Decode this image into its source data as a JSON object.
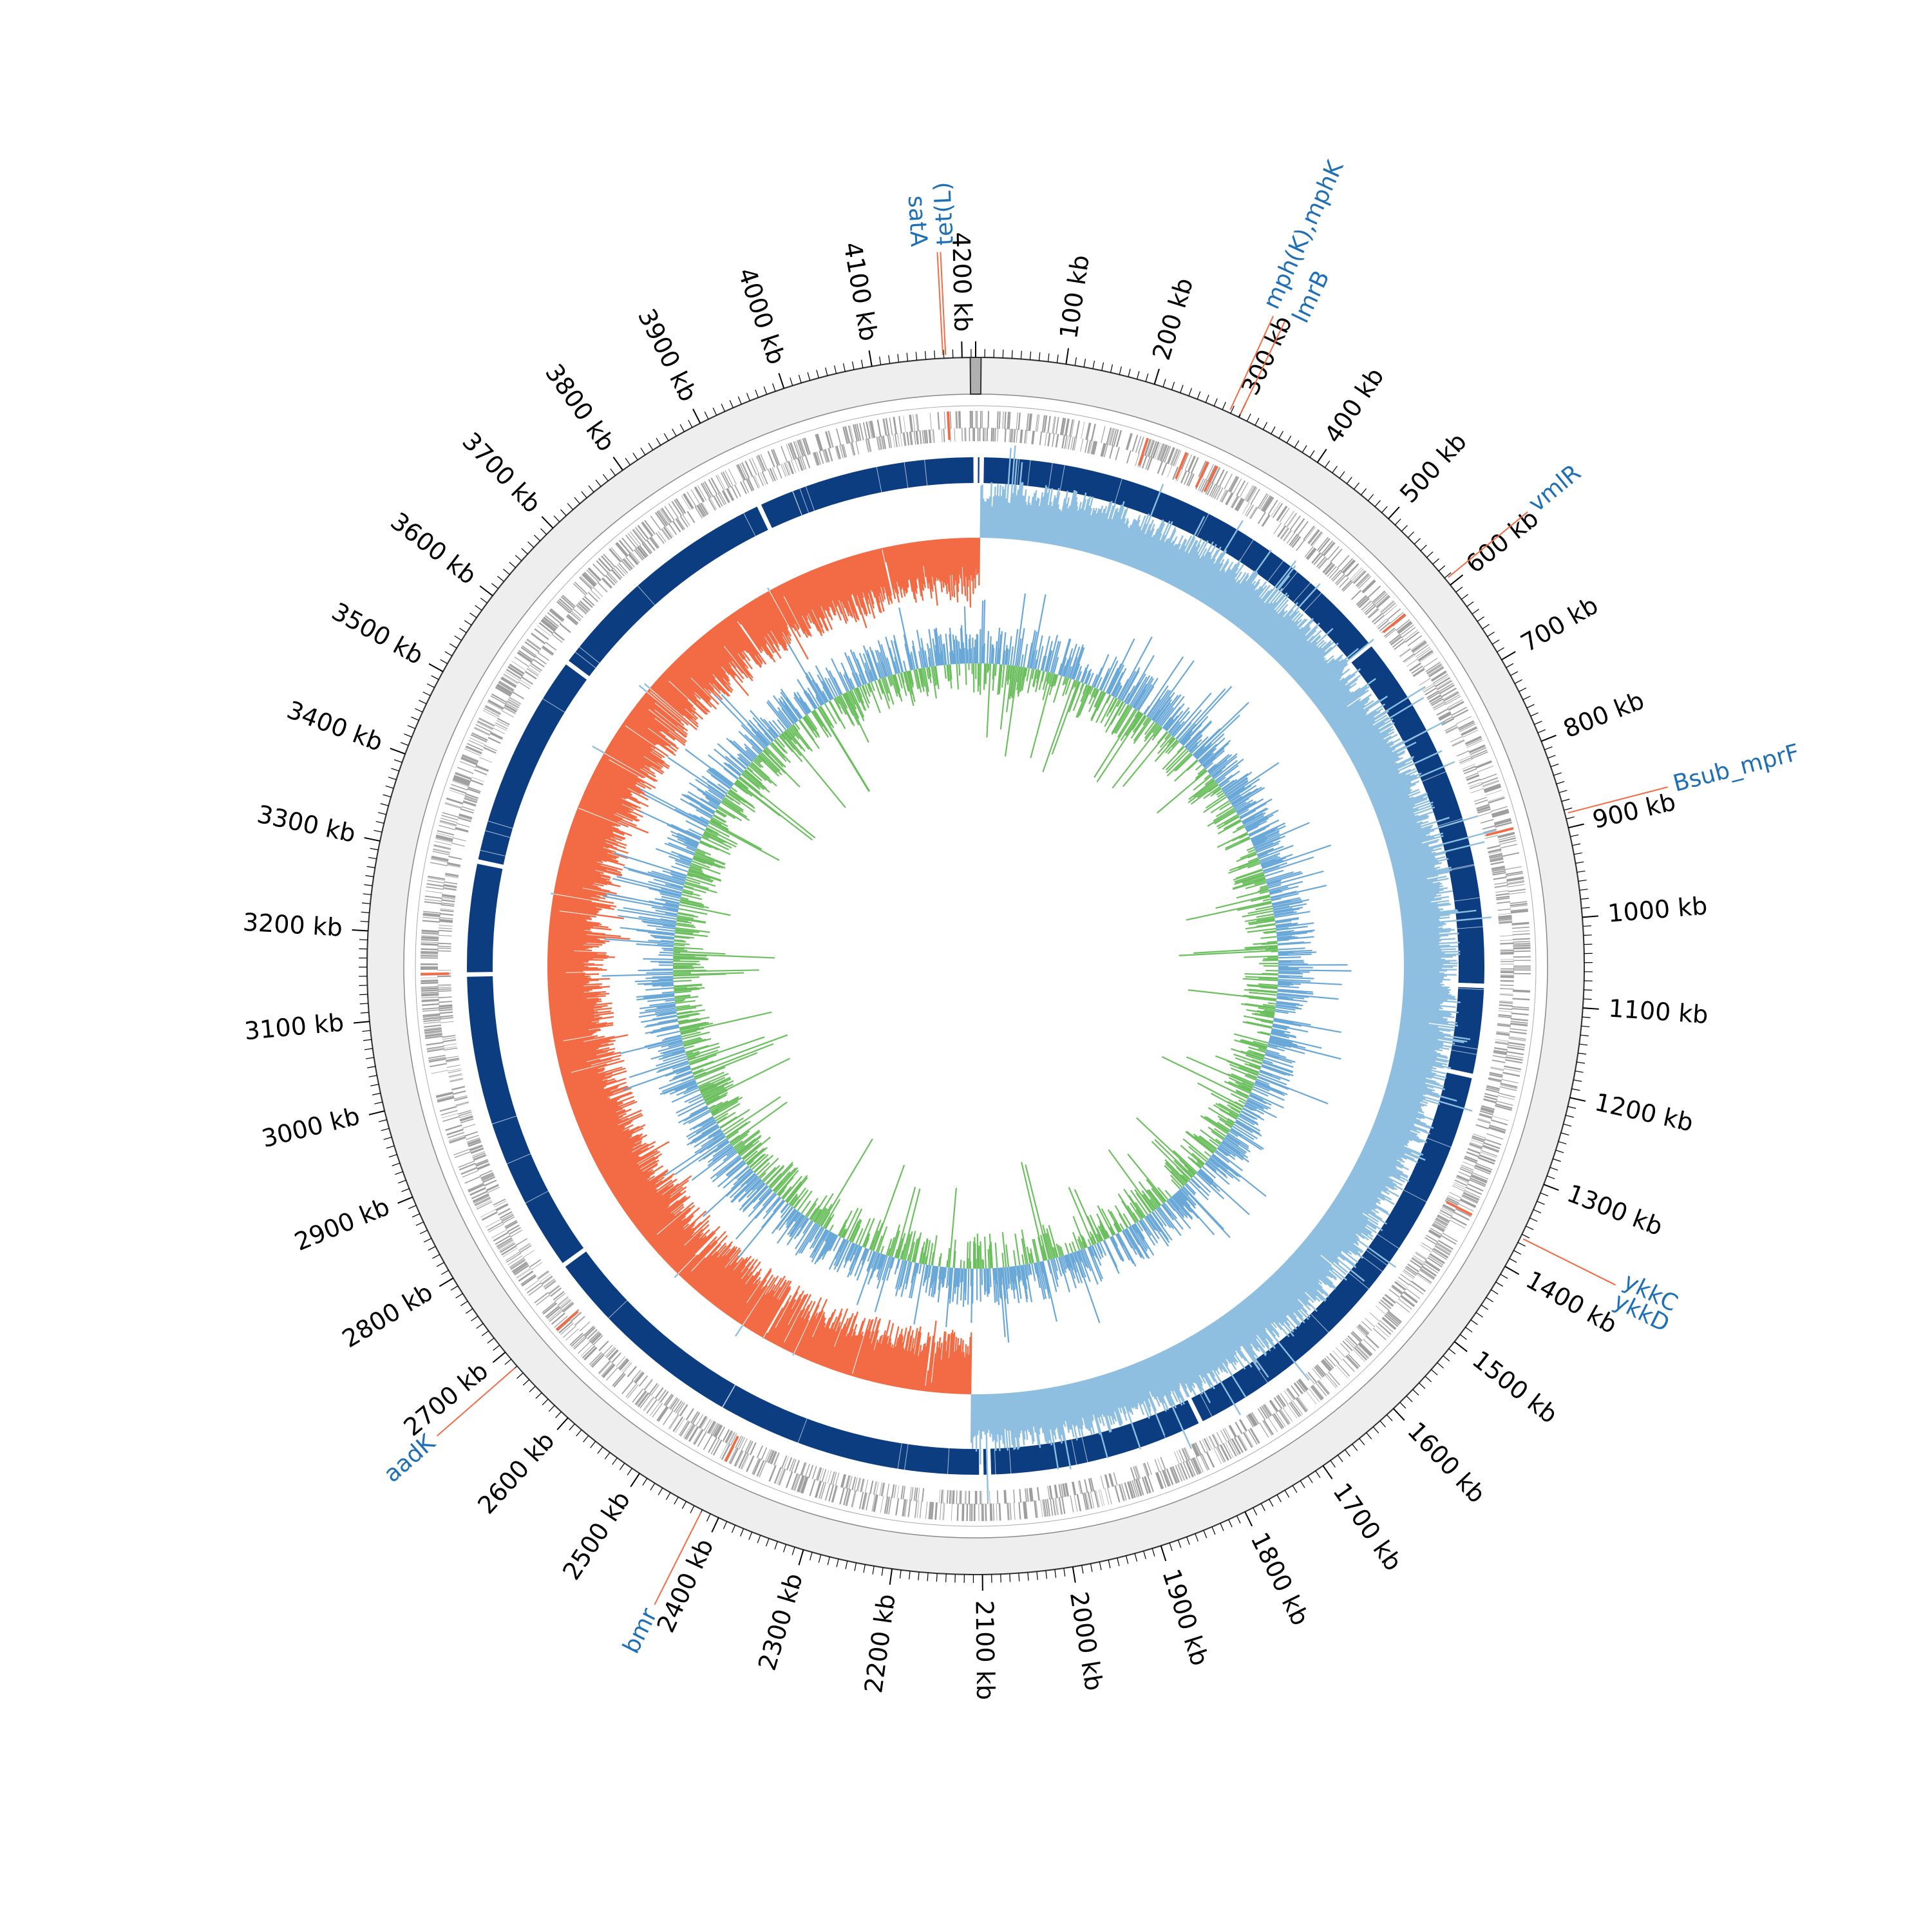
{
  "genome": {
    "length_kb": 4215,
    "unit": "kb"
  },
  "colors": {
    "background_ring": "#eeeeee",
    "cds_gray": "#9e9e9e",
    "cds_highlight": "#f26b45",
    "contig_blue": "#0b3d80",
    "gc_skew_pos": "#8fbfe0",
    "gc_skew_neg": "#f26b45",
    "gc_content_pos": "#6aa8d8",
    "gc_content_neg": "#6cbf5f",
    "label_blue": "#1f6fb4",
    "leader_red": "#f26b45",
    "outline": "#333333"
  },
  "ticks": [
    {
      "kb": 100,
      "label": "100 kb"
    },
    {
      "kb": 200,
      "label": "200 kb"
    },
    {
      "kb": 300,
      "label": "300 kb"
    },
    {
      "kb": 400,
      "label": "400 kb"
    },
    {
      "kb": 500,
      "label": "500 kb"
    },
    {
      "kb": 600,
      "label": "600 kb"
    },
    {
      "kb": 700,
      "label": "700 kb"
    },
    {
      "kb": 800,
      "label": "800 kb"
    },
    {
      "kb": 900,
      "label": "900 kb"
    },
    {
      "kb": 1000,
      "label": "1000 kb"
    },
    {
      "kb": 1100,
      "label": "1100 kb"
    },
    {
      "kb": 1200,
      "label": "1200 kb"
    },
    {
      "kb": 1300,
      "label": "1300 kb"
    },
    {
      "kb": 1400,
      "label": "1400 kb"
    },
    {
      "kb": 1500,
      "label": "1500 kb"
    },
    {
      "kb": 1600,
      "label": "1600 kb"
    },
    {
      "kb": 1700,
      "label": "1700 kb"
    },
    {
      "kb": 1800,
      "label": "1800 kb"
    },
    {
      "kb": 1900,
      "label": "1900 kb"
    },
    {
      "kb": 2000,
      "label": "2000 kb"
    },
    {
      "kb": 2100,
      "label": "2100 kb"
    },
    {
      "kb": 2200,
      "label": "2200 kb"
    },
    {
      "kb": 2300,
      "label": "2300 kb"
    },
    {
      "kb": 2400,
      "label": "2400 kb"
    },
    {
      "kb": 2500,
      "label": "2500 kb"
    },
    {
      "kb": 2600,
      "label": "2600 kb"
    },
    {
      "kb": 2700,
      "label": "2700 kb"
    },
    {
      "kb": 2800,
      "label": "2800 kb"
    },
    {
      "kb": 2900,
      "label": "2900 kb"
    },
    {
      "kb": 3000,
      "label": "3000 kb"
    },
    {
      "kb": 3100,
      "label": "3100 kb"
    },
    {
      "kb": 3200,
      "label": "3200 kb"
    },
    {
      "kb": 3300,
      "label": "3300 kb"
    },
    {
      "kb": 3400,
      "label": "3400 kb"
    },
    {
      "kb": 3500,
      "label": "3500 kb"
    },
    {
      "kb": 3600,
      "label": "3600 kb"
    },
    {
      "kb": 3700,
      "label": "3700 kb"
    },
    {
      "kb": 3800,
      "label": "3800 kb"
    },
    {
      "kb": 3900,
      "label": "3900 kb"
    },
    {
      "kb": 4000,
      "label": "4000 kb"
    },
    {
      "kb": 4100,
      "label": "4100 kb"
    },
    {
      "kb": 4200,
      "label": "4200 kb"
    }
  ],
  "gene_annotations": [
    {
      "label": "tet(L)",
      "kb": 4182
    },
    {
      "label": "satA",
      "kb": 4179
    },
    {
      "label": "mph(K),mphK",
      "kb": 288
    },
    {
      "label": "lmrB",
      "kb": 300
    },
    {
      "label": "vmlR",
      "kb": 592
    },
    {
      "label": "Bsub_mprF",
      "kb": 884
    },
    {
      "label": "ykkC",
      "kb": 1364
    },
    {
      "label": "ykkD",
      "kb": 1364
    },
    {
      "label": "aadK",
      "kb": 2680
    },
    {
      "label": "bmr",
      "kb": 2420
    }
  ],
  "contig_gaps_kb": [
    8,
    595,
    1080,
    1200,
    1800,
    2090,
    2100,
    2740,
    3150,
    3300,
    3590,
    3920
  ],
  "gc_skew_crossovers_kb": [
    6,
    2115
  ]
}
